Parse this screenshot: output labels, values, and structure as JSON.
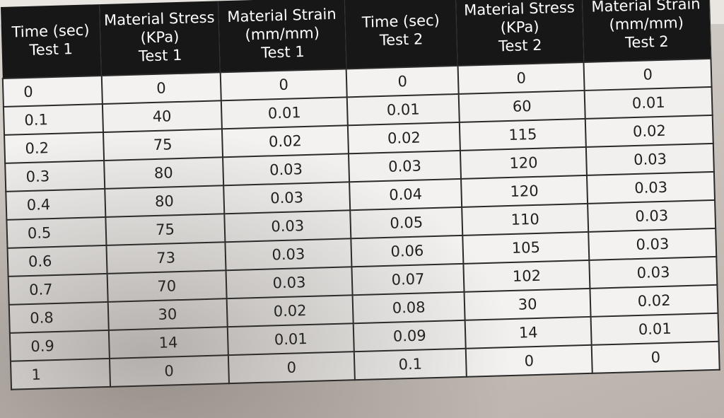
{
  "headers": [
    "Time (sec)\nTest 1",
    "Material Stress\n(KPa)\nTest 1",
    "Material Strain\n(mm/mm)\nTest 1",
    "Time (sec)\nTest 2",
    "Material Stress\n(KPa)\nTest 2",
    "Material Strain\n(mm/mm)\nTest 2"
  ],
  "rows": [
    [
      "0",
      "0",
      "0",
      "0",
      "0",
      "0"
    ],
    [
      "0.1",
      "40",
      "0.01",
      "0.01",
      "60",
      "0.01"
    ],
    [
      "0.2",
      "75",
      "0.02",
      "0.02",
      "115",
      "0.02"
    ],
    [
      "0.3",
      "80",
      "0.03",
      "0.03",
      "120",
      "0.03"
    ],
    [
      "0.4",
      "80",
      "0.03",
      "0.04",
      "120",
      "0.03"
    ],
    [
      "0.5",
      "75",
      "0.03",
      "0.05",
      "110",
      "0.03"
    ],
    [
      "0.6",
      "73",
      "0.03",
      "0.06",
      "105",
      "0.03"
    ],
    [
      "0.7",
      "70",
      "0.03",
      "0.07",
      "102",
      "0.03"
    ],
    [
      "0.8",
      "30",
      "0.02",
      "0.08",
      "30",
      "0.02"
    ],
    [
      "0.9",
      "14",
      "0.01",
      "0.09",
      "14",
      "0.01"
    ],
    [
      "1",
      "0",
      "0",
      "0.1",
      "0",
      "0"
    ]
  ]
}
